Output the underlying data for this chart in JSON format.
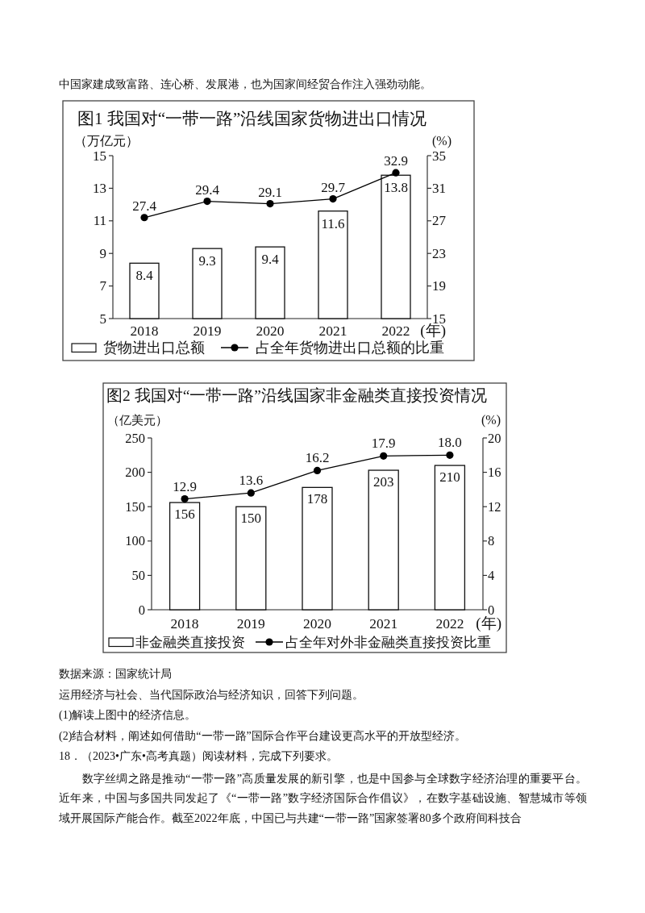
{
  "chart_data": [
    {
      "type": "bar",
      "title": "图1 我国对“一带一路”沿线国家货物进出口情况",
      "ylabel": "（万亿元）",
      "y2label": "(%)",
      "xlabel": "(年)",
      "categories": [
        "2018",
        "2019",
        "2020",
        "2021",
        "2022"
      ],
      "series": [
        {
          "name": "货物进出口总额",
          "color": "#ffffff",
          "values": [
            8.4,
            9.3,
            9.4,
            11.6,
            13.8
          ]
        },
        {
          "name": "占全年货物进出口总额的比重",
          "type": "line",
          "axis": "y2",
          "color": "#000000",
          "values": [
            27.4,
            29.4,
            29.1,
            29.7,
            32.9
          ]
        }
      ],
      "ylim": [
        5,
        15
      ],
      "yticks": [
        5,
        7,
        9,
        11,
        13,
        15
      ],
      "y2lim": [
        15,
        35
      ],
      "y2ticks": [
        15,
        19,
        23,
        27,
        31,
        35
      ],
      "data_labels": true,
      "legend": "bottom",
      "marker": "circle",
      "annotations": [
        "中国家建成致富路、连心桥、发展港，也为国家间经贸合作注入强劲动能。"
      ]
    },
    {
      "type": "bar",
      "title": "图2 我国对“一带一路”沿线国家非金融类直接投资情况",
      "ylabel": "（亿美元）",
      "y2label": "(%)",
      "xlabel": "(年)",
      "categories": [
        "2018",
        "2019",
        "2020",
        "2021",
        "2022"
      ],
      "series": [
        {
          "name": "非金融类直接投资",
          "color": "#ffffff",
          "values": [
            156,
            150,
            178,
            203,
            210
          ],
          "value_labels": [
            "156",
            "150",
            "178",
            "203",
            "210"
          ]
        },
        {
          "name": "占全年对外非金融类直接投资比重",
          "type": "line",
          "axis": "y2",
          "color": "#000000",
          "values": [
            12.9,
            13.6,
            16.2,
            17.9,
            18.0
          ],
          "value_labels": [
            "12.9",
            "13.6",
            "16.2",
            "17.9",
            "18.0"
          ]
        }
      ],
      "ylim": [
        0,
        250
      ],
      "yticks": [
        0,
        50,
        100,
        150,
        200,
        250
      ],
      "y2lim": [
        0,
        20
      ],
      "y2ticks": [
        0,
        4,
        8,
        12,
        16,
        20
      ],
      "legend": "bottom",
      "marker": "circle",
      "annotations": [
        "数据来源：国家统计局",
        "运用经济与社会、当代国际政治与经济知识，回答下列问题。",
        "(1)解读上图中的经济信息。",
        "(2)结合材料，阐述如何借助“一带一路”国际合作平台建设更高水平的开放型经济。",
        "18．（2023•广东•高考真题）阅读材料，完成下列要求。",
        "数字丝绸之路是推动“一带一路”高质量发展的新引擎，也是中国参与全球数字经济治理的重要平台。近年来，中国与多国共同发起了《“一带一路”数字经济国际合作倡议》，在数字基础设施、智慧城市等领域开展国际产能合作。截至2022年底，中国已与共建“一带一路”国家签署80多个政府间科技合"
      ]
    }
  ]
}
